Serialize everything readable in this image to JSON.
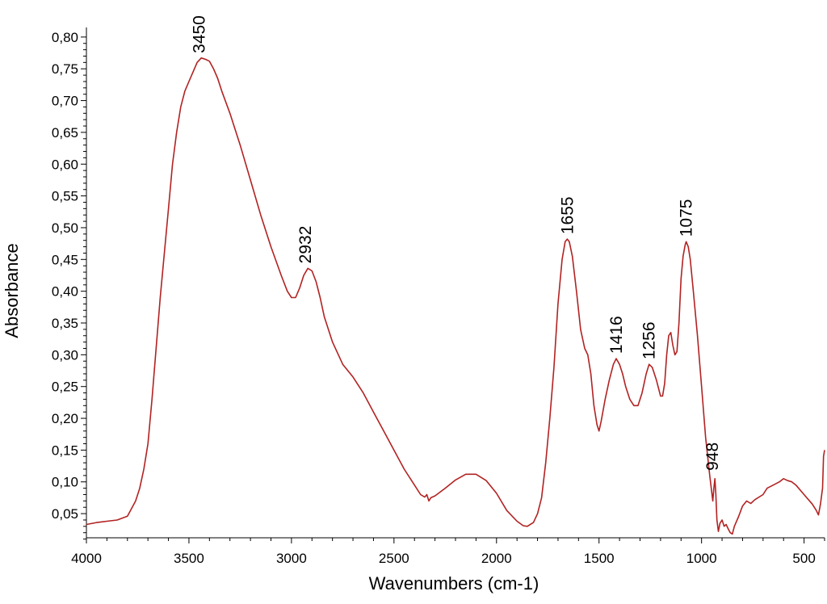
{
  "chart_data": {
    "type": "line",
    "xlabel": "Wavenumbers (cm-1)",
    "ylabel": "Absorbance",
    "xlim": [
      4000,
      400
    ],
    "ylim": [
      0.012,
      0.81
    ],
    "x_reversed": true,
    "grid": false,
    "x_ticks": [
      {
        "value": 4000,
        "label": "4000"
      },
      {
        "value": 3500,
        "label": "3500"
      },
      {
        "value": 3000,
        "label": "3000"
      },
      {
        "value": 2500,
        "label": "2500"
      },
      {
        "value": 2000,
        "label": "2000"
      },
      {
        "value": 1500,
        "label": "1500"
      },
      {
        "value": 1000,
        "label": "1000"
      },
      {
        "value": 500,
        "label": "500"
      }
    ],
    "y_ticks": [
      {
        "value": 0.05,
        "label": "0,05"
      },
      {
        "value": 0.1,
        "label": "0,10"
      },
      {
        "value": 0.15,
        "label": "0,15"
      },
      {
        "value": 0.2,
        "label": "0,20"
      },
      {
        "value": 0.25,
        "label": "0,25"
      },
      {
        "value": 0.3,
        "label": "0,30"
      },
      {
        "value": 0.35,
        "label": "0,35"
      },
      {
        "value": 0.4,
        "label": "0,40"
      },
      {
        "value": 0.45,
        "label": "0,45"
      },
      {
        "value": 0.5,
        "label": "0,50"
      },
      {
        "value": 0.55,
        "label": "0,55"
      },
      {
        "value": 0.6,
        "label": "0,60"
      },
      {
        "value": 0.65,
        "label": "0,65"
      },
      {
        "value": 0.7,
        "label": "0,70"
      },
      {
        "value": 0.75,
        "label": "0,75"
      },
      {
        "value": 0.8,
        "label": "0,80"
      }
    ],
    "series": [
      {
        "color": "#b22222",
        "points": [
          [
            4000,
            0.033
          ],
          [
            3950,
            0.036
          ],
          [
            3900,
            0.038
          ],
          [
            3850,
            0.04
          ],
          [
            3800,
            0.046
          ],
          [
            3780,
            0.058
          ],
          [
            3760,
            0.07
          ],
          [
            3740,
            0.09
          ],
          [
            3720,
            0.12
          ],
          [
            3700,
            0.16
          ],
          [
            3680,
            0.23
          ],
          [
            3660,
            0.31
          ],
          [
            3640,
            0.39
          ],
          [
            3620,
            0.46
          ],
          [
            3600,
            0.53
          ],
          [
            3580,
            0.6
          ],
          [
            3560,
            0.65
          ],
          [
            3540,
            0.69
          ],
          [
            3520,
            0.715
          ],
          [
            3500,
            0.73
          ],
          [
            3480,
            0.745
          ],
          [
            3460,
            0.76
          ],
          [
            3440,
            0.767
          ],
          [
            3420,
            0.765
          ],
          [
            3400,
            0.762
          ],
          [
            3380,
            0.75
          ],
          [
            3360,
            0.735
          ],
          [
            3340,
            0.715
          ],
          [
            3300,
            0.68
          ],
          [
            3250,
            0.63
          ],
          [
            3200,
            0.575
          ],
          [
            3150,
            0.52
          ],
          [
            3100,
            0.47
          ],
          [
            3050,
            0.425
          ],
          [
            3020,
            0.4
          ],
          [
            3000,
            0.39
          ],
          [
            2980,
            0.39
          ],
          [
            2960,
            0.405
          ],
          [
            2940,
            0.425
          ],
          [
            2920,
            0.436
          ],
          [
            2900,
            0.432
          ],
          [
            2880,
            0.415
          ],
          [
            2860,
            0.39
          ],
          [
            2840,
            0.36
          ],
          [
            2800,
            0.32
          ],
          [
            2750,
            0.285
          ],
          [
            2700,
            0.265
          ],
          [
            2650,
            0.24
          ],
          [
            2600,
            0.21
          ],
          [
            2550,
            0.18
          ],
          [
            2500,
            0.15
          ],
          [
            2450,
            0.12
          ],
          [
            2400,
            0.095
          ],
          [
            2370,
            0.08
          ],
          [
            2350,
            0.076
          ],
          [
            2340,
            0.08
          ],
          [
            2330,
            0.07
          ],
          [
            2320,
            0.075
          ],
          [
            2300,
            0.078
          ],
          [
            2250,
            0.09
          ],
          [
            2200,
            0.103
          ],
          [
            2150,
            0.112
          ],
          [
            2100,
            0.112
          ],
          [
            2050,
            0.102
          ],
          [
            2000,
            0.082
          ],
          [
            1950,
            0.055
          ],
          [
            1900,
            0.038
          ],
          [
            1870,
            0.031
          ],
          [
            1850,
            0.03
          ],
          [
            1820,
            0.036
          ],
          [
            1800,
            0.05
          ],
          [
            1780,
            0.075
          ],
          [
            1760,
            0.13
          ],
          [
            1740,
            0.2
          ],
          [
            1720,
            0.28
          ],
          [
            1700,
            0.38
          ],
          [
            1680,
            0.45
          ],
          [
            1665,
            0.478
          ],
          [
            1655,
            0.482
          ],
          [
            1645,
            0.478
          ],
          [
            1630,
            0.455
          ],
          [
            1610,
            0.4
          ],
          [
            1590,
            0.34
          ],
          [
            1570,
            0.31
          ],
          [
            1555,
            0.3
          ],
          [
            1540,
            0.27
          ],
          [
            1525,
            0.22
          ],
          [
            1510,
            0.19
          ],
          [
            1500,
            0.18
          ],
          [
            1490,
            0.195
          ],
          [
            1470,
            0.23
          ],
          [
            1450,
            0.26
          ],
          [
            1430,
            0.285
          ],
          [
            1416,
            0.294
          ],
          [
            1400,
            0.285
          ],
          [
            1385,
            0.27
          ],
          [
            1370,
            0.25
          ],
          [
            1350,
            0.23
          ],
          [
            1330,
            0.22
          ],
          [
            1310,
            0.22
          ],
          [
            1290,
            0.24
          ],
          [
            1270,
            0.27
          ],
          [
            1256,
            0.285
          ],
          [
            1240,
            0.28
          ],
          [
            1220,
            0.26
          ],
          [
            1200,
            0.235
          ],
          [
            1190,
            0.235
          ],
          [
            1180,
            0.255
          ],
          [
            1170,
            0.3
          ],
          [
            1160,
            0.33
          ],
          [
            1150,
            0.335
          ],
          [
            1140,
            0.315
          ],
          [
            1130,
            0.3
          ],
          [
            1120,
            0.305
          ],
          [
            1110,
            0.35
          ],
          [
            1100,
            0.42
          ],
          [
            1090,
            0.455
          ],
          [
            1080,
            0.473
          ],
          [
            1075,
            0.478
          ],
          [
            1065,
            0.47
          ],
          [
            1055,
            0.45
          ],
          [
            1040,
            0.4
          ],
          [
            1020,
            0.33
          ],
          [
            1000,
            0.25
          ],
          [
            980,
            0.17
          ],
          [
            960,
            0.11
          ],
          [
            945,
            0.07
          ],
          [
            940,
            0.09
          ],
          [
            935,
            0.105
          ],
          [
            930,
            0.08
          ],
          [
            925,
            0.04
          ],
          [
            918,
            0.022
          ],
          [
            910,
            0.035
          ],
          [
            900,
            0.04
          ],
          [
            890,
            0.03
          ],
          [
            880,
            0.033
          ],
          [
            870,
            0.026
          ],
          [
            860,
            0.02
          ],
          [
            850,
            0.018
          ],
          [
            840,
            0.03
          ],
          [
            820,
            0.045
          ],
          [
            800,
            0.062
          ],
          [
            780,
            0.07
          ],
          [
            760,
            0.066
          ],
          [
            740,
            0.072
          ],
          [
            700,
            0.08
          ],
          [
            680,
            0.09
          ],
          [
            650,
            0.095
          ],
          [
            620,
            0.1
          ],
          [
            600,
            0.105
          ],
          [
            580,
            0.102
          ],
          [
            560,
            0.1
          ],
          [
            540,
            0.095
          ],
          [
            500,
            0.08
          ],
          [
            460,
            0.065
          ],
          [
            440,
            0.055
          ],
          [
            430,
            0.048
          ],
          [
            420,
            0.065
          ],
          [
            410,
            0.09
          ],
          [
            405,
            0.14
          ],
          [
            400,
            0.15
          ]
        ]
      }
    ],
    "annotations": [
      {
        "x": 3450,
        "y": 0.767,
        "text": "3450"
      },
      {
        "x": 2932,
        "y": 0.436,
        "text": "2932"
      },
      {
        "x": 1655,
        "y": 0.482,
        "text": "1655"
      },
      {
        "x": 1416,
        "y": 0.294,
        "text": "1416"
      },
      {
        "x": 1256,
        "y": 0.285,
        "text": "1256"
      },
      {
        "x": 1075,
        "y": 0.478,
        "text": "1075"
      },
      {
        "x": 948,
        "y": 0.11,
        "text": "948"
      }
    ]
  }
}
